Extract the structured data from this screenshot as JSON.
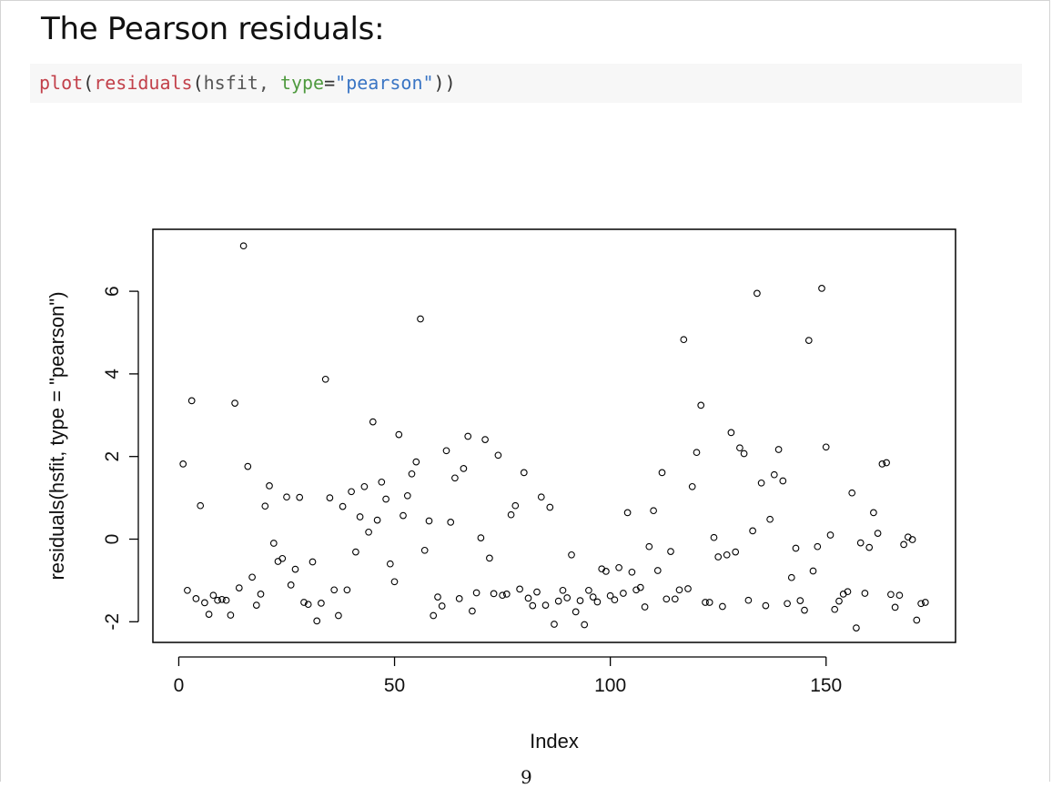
{
  "heading": "The Pearson residuals:",
  "code": {
    "fn1": "plot",
    "p1": "(",
    "fn2": "residuals",
    "p2": "(",
    "arg": "hsfit, ",
    "kw": "type",
    "eq": "=",
    "str": "\"pearson\"",
    "p3": "))"
  },
  "page_number": "9",
  "chart_data": {
    "type": "scatter",
    "title": "",
    "xlabel": "Index",
    "ylabel": "residuals(hsfit, type = \"pearson\")",
    "xlim": [
      -6,
      180
    ],
    "ylim": [
      -2.5,
      7.5
    ],
    "x_ticks": [
      0,
      50,
      100,
      150
    ],
    "y_ticks": [
      -2,
      0,
      2,
      4,
      6
    ],
    "x_tick_labels": [
      "0",
      "50",
      "100",
      "150"
    ],
    "y_tick_labels": [
      "-2",
      "0",
      "2",
      "4",
      "6"
    ],
    "grid": false,
    "series": [
      {
        "marker": "open-circle",
        "x": [
          1,
          2,
          3,
          4,
          5,
          6,
          7,
          8,
          9,
          10,
          11,
          12,
          13,
          14,
          15,
          16,
          17,
          18,
          19,
          20,
          21,
          22,
          23,
          24,
          25,
          26,
          27,
          28,
          29,
          30,
          31,
          32,
          33,
          34,
          35,
          36,
          37,
          38,
          39,
          40,
          41,
          42,
          43,
          44,
          45,
          46,
          47,
          48,
          49,
          50,
          51,
          52,
          53,
          54,
          55,
          56,
          57,
          58,
          59,
          60,
          61,
          62,
          63,
          64,
          65,
          66,
          67,
          68,
          69,
          70,
          71,
          72,
          73,
          74,
          75,
          76,
          77,
          78,
          79,
          80,
          81,
          82,
          83,
          84,
          85,
          86,
          87,
          88,
          89,
          90,
          91,
          92,
          93,
          94,
          95,
          96,
          97,
          98,
          99,
          100,
          101,
          102,
          103,
          104,
          105,
          106,
          107,
          108,
          109,
          110,
          111,
          112,
          113,
          114,
          115,
          116,
          117,
          118,
          119,
          120,
          121,
          122,
          123,
          124,
          125,
          126,
          127,
          128,
          129,
          130,
          131,
          132,
          133,
          134,
          135,
          136,
          137,
          138,
          139,
          140,
          141,
          142,
          143,
          144,
          145,
          146,
          147,
          148,
          149,
          150,
          151,
          152,
          153,
          154,
          155,
          156,
          157,
          158,
          159,
          160,
          161,
          162,
          163,
          164,
          165,
          166,
          167,
          168,
          169,
          170,
          171,
          172,
          173
        ],
        "y": [
          1.82,
          -1.24,
          3.35,
          -1.44,
          0.81,
          -1.54,
          -1.82,
          -1.36,
          -1.48,
          -1.46,
          -1.48,
          -1.84,
          3.29,
          -1.18,
          7.1,
          1.76,
          -0.92,
          -1.6,
          -1.33,
          0.8,
          1.29,
          -0.1,
          -0.54,
          -0.47,
          1.02,
          -1.11,
          -0.73,
          1.01,
          -1.53,
          -1.58,
          -0.55,
          -1.98,
          -1.55,
          3.87,
          1.0,
          -1.23,
          -1.85,
          0.79,
          -1.23,
          1.15,
          -0.31,
          0.54,
          1.27,
          0.17,
          2.84,
          0.46,
          1.38,
          0.97,
          -0.6,
          -1.03,
          2.53,
          0.57,
          1.05,
          1.58,
          1.87,
          5.33,
          -0.27,
          0.44,
          -1.85,
          -1.4,
          -1.62,
          2.14,
          0.41,
          1.48,
          -1.44,
          1.71,
          2.49,
          -1.74,
          -1.3,
          0.03,
          2.41,
          -0.46,
          -1.32,
          2.03,
          -1.36,
          -1.33,
          0.59,
          0.81,
          -1.21,
          1.61,
          -1.43,
          -1.61,
          -1.28,
          1.02,
          -1.6,
          0.77,
          -2.06,
          -1.5,
          -1.24,
          -1.42,
          -0.38,
          -1.76,
          -1.49,
          -2.07,
          -1.24,
          -1.4,
          -1.52,
          -0.72,
          -0.78,
          -1.37,
          -1.47,
          -0.69,
          -1.31,
          0.64,
          -0.8,
          -1.23,
          -1.17,
          -1.64,
          -0.18,
          0.69,
          -0.76,
          1.61,
          -1.45,
          -0.3,
          -1.45,
          -1.23,
          4.83,
          -1.2,
          1.27,
          2.1,
          3.24,
          -1.53,
          -1.53,
          0.04,
          -0.43,
          -1.63,
          -0.38,
          2.58,
          -0.31,
          2.21,
          2.07,
          -1.48,
          0.2,
          5.95,
          1.36,
          -1.61,
          0.48,
          1.56,
          2.17,
          1.41,
          -1.56,
          -0.93,
          -0.22,
          -1.49,
          -1.72,
          4.81,
          -0.77,
          -0.18,
          6.07,
          2.23,
          0.1,
          -1.7,
          -1.5,
          -1.33,
          -1.27,
          1.12,
          -2.15,
          -0.09,
          -1.31,
          -0.2,
          0.64,
          0.14,
          1.82,
          1.85,
          -1.34,
          -1.65,
          -1.36,
          -0.13,
          0.05,
          -0.01,
          -1.96,
          -1.56,
          -1.53
        ]
      }
    ]
  }
}
